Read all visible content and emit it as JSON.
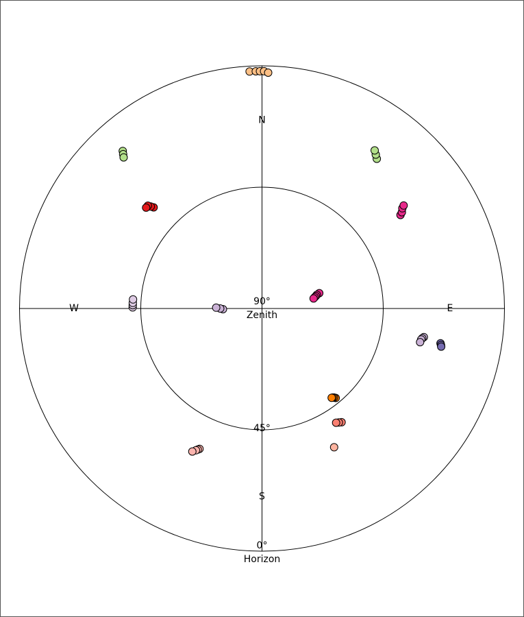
{
  "chart_data": {
    "type": "scatter",
    "projection": "polar-skyplot",
    "radial_axis": {
      "quantity": "elevation",
      "unit": "deg",
      "range": [
        0,
        90
      ],
      "circles_at": [
        0,
        45
      ],
      "labels": [
        {
          "elevation": 90,
          "text": "90°",
          "caption": "Zenith"
        },
        {
          "elevation": 45,
          "text": "45°"
        },
        {
          "elevation": 0,
          "text": "0°",
          "caption": "Horizon"
        }
      ]
    },
    "directions": [
      {
        "azimuth": 0,
        "text": "N"
      },
      {
        "azimuth": 90,
        "text": "E"
      },
      {
        "azimuth": 180,
        "text": "S"
      },
      {
        "azimuth": 270,
        "text": "W"
      }
    ],
    "grid": true,
    "legend": "none",
    "tracks": [
      {
        "color": "#fdc086",
        "points": [
          [
            357,
            2
          ],
          [
            358.5,
            2
          ],
          [
            359.5,
            2
          ],
          [
            0.5,
            2
          ],
          [
            1.5,
            2.5
          ]
        ]
      },
      {
        "color": "#b2df8a",
        "points": [
          [
            37.5,
            20
          ],
          [
            36.5,
            19
          ],
          [
            35.5,
            18
          ]
        ]
      },
      {
        "color": "#b2df8a",
        "points": [
          [
            318.5,
            12
          ],
          [
            318,
            13
          ],
          [
            317.5,
            14
          ]
        ]
      },
      {
        "color": "#e41a1c",
        "points": [
          [
            313,
            35
          ],
          [
            312.5,
            34
          ],
          [
            312,
            33
          ],
          [
            311,
            33
          ]
        ]
      },
      {
        "color": "#e7298a",
        "points": [
          [
            56,
            28
          ],
          [
            55.5,
            27
          ],
          [
            54.5,
            26
          ],
          [
            54,
            25
          ]
        ]
      },
      {
        "color": "#e7298a",
        "points": [
          [
            75,
            68
          ],
          [
            76,
            69
          ],
          [
            77,
            69.5
          ],
          [
            78,
            70
          ],
          [
            79,
            70.5
          ]
        ]
      },
      {
        "color": "#decbe4",
        "points": [
          [
            270.5,
            42
          ],
          [
            271.5,
            42
          ],
          [
            272.5,
            42
          ],
          [
            274,
            42
          ]
        ]
      },
      {
        "color": "#cab2d6",
        "points": [
          [
            269,
            75.5
          ],
          [
            270,
            74.5
          ],
          [
            271,
            73
          ]
        ]
      },
      {
        "color": "#cab2d6",
        "points": [
          [
            100,
            29
          ],
          [
            100.5,
            29.5
          ],
          [
            101,
            29.8
          ],
          [
            102,
            30
          ]
        ]
      },
      {
        "color": "#756bb1",
        "points": [
          [
            101,
            22.5
          ],
          [
            101.5,
            22.2
          ],
          [
            102,
            22
          ]
        ]
      },
      {
        "color": "#fb8072",
        "points": [
          [
            145,
            38.5
          ],
          [
            146,
            39
          ],
          [
            147,
            39.5
          ]
        ]
      },
      {
        "color": "#ff7f00",
        "points": [
          [
            140.5,
            47
          ],
          [
            141,
            47.5
          ],
          [
            141.5,
            47.8
          ],
          [
            142,
            48
          ]
        ]
      },
      {
        "color": "#fdb4a0",
        "points": [
          [
            152.5,
            32
          ]
        ]
      },
      {
        "color": "#fbb4ae",
        "points": [
          [
            204,
            33
          ],
          [
            204.5,
            32.5
          ],
          [
            205,
            32
          ],
          [
            206,
            31
          ]
        ]
      }
    ]
  }
}
